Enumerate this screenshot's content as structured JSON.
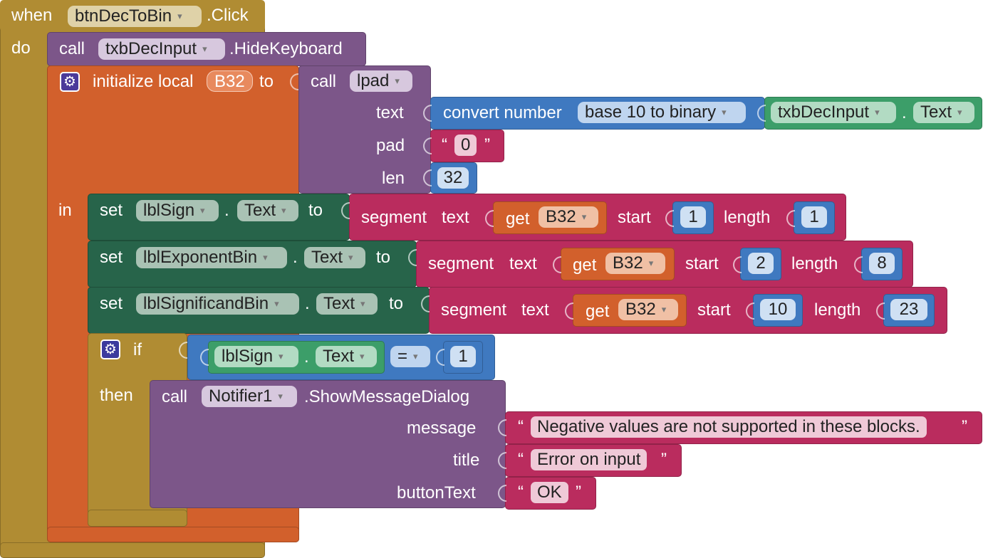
{
  "event": {
    "when_label": "when",
    "component": "btnDecToBin",
    "event_name": ".Click",
    "do_label": "do"
  },
  "hide_keyboard": {
    "call_label": "call",
    "component": "txbDecInput",
    "method": ".HideKeyboard"
  },
  "init_local": {
    "label": "initialize local",
    "var_name": "B32",
    "to_label": "to",
    "in_label": "in"
  },
  "lpad": {
    "call_label": "call",
    "procedure": "lpad",
    "text_label": "text",
    "pad_label": "pad",
    "len_label": "len",
    "pad_value": "0",
    "len_value": "32"
  },
  "convert": {
    "label": "convert number",
    "mode": "base 10 to binary",
    "component": "txbDecInput",
    "property": "Text"
  },
  "setters": [
    {
      "set_label": "set",
      "component": "lblSign",
      "property": "Text",
      "to_label": "to",
      "segment_label": "segment",
      "text_label": "text",
      "get_label": "get",
      "var_name": "B32",
      "start_label": "start",
      "start": "1",
      "length_label": "length",
      "length": "1"
    },
    {
      "set_label": "set",
      "component": "lblExponentBin",
      "property": "Text",
      "to_label": "to",
      "segment_label": "segment",
      "text_label": "text",
      "get_label": "get",
      "var_name": "B32",
      "start_label": "start",
      "start": "2",
      "length_label": "length",
      "length": "8"
    },
    {
      "set_label": "set",
      "component": "lblSignificandBin",
      "property": "Text",
      "to_label": "to",
      "segment_label": "segment",
      "text_label": "text",
      "get_label": "get",
      "var_name": "B32",
      "start_label": "start",
      "start": "10",
      "length_label": "length",
      "length": "23"
    }
  ],
  "if_block": {
    "if_label": "if",
    "then_label": "then",
    "component": "lblSign",
    "property": "Text",
    "operator": "=",
    "compare_value": "1"
  },
  "notifier": {
    "call_label": "call",
    "component": "Notifier1",
    "method": ".ShowMessageDialog",
    "message_label": "message",
    "title_label": "title",
    "button_label": "buttonText",
    "message": "Negative values are not supported in these blocks.",
    "title": "Error on input",
    "button_text": "OK"
  },
  "glyphs": {
    "open_quote": "“",
    "close_quote": "”",
    "dot": ".",
    "arrow": "▾",
    "gear": "⚙"
  },
  "colors": {
    "event": "#b08c33",
    "procedure": "#7c5689",
    "variable": "#d2602c",
    "component_set": "#27644a",
    "math": "#3f79c0",
    "component_get": "#3c9e69",
    "text": "#ba2c5e"
  }
}
